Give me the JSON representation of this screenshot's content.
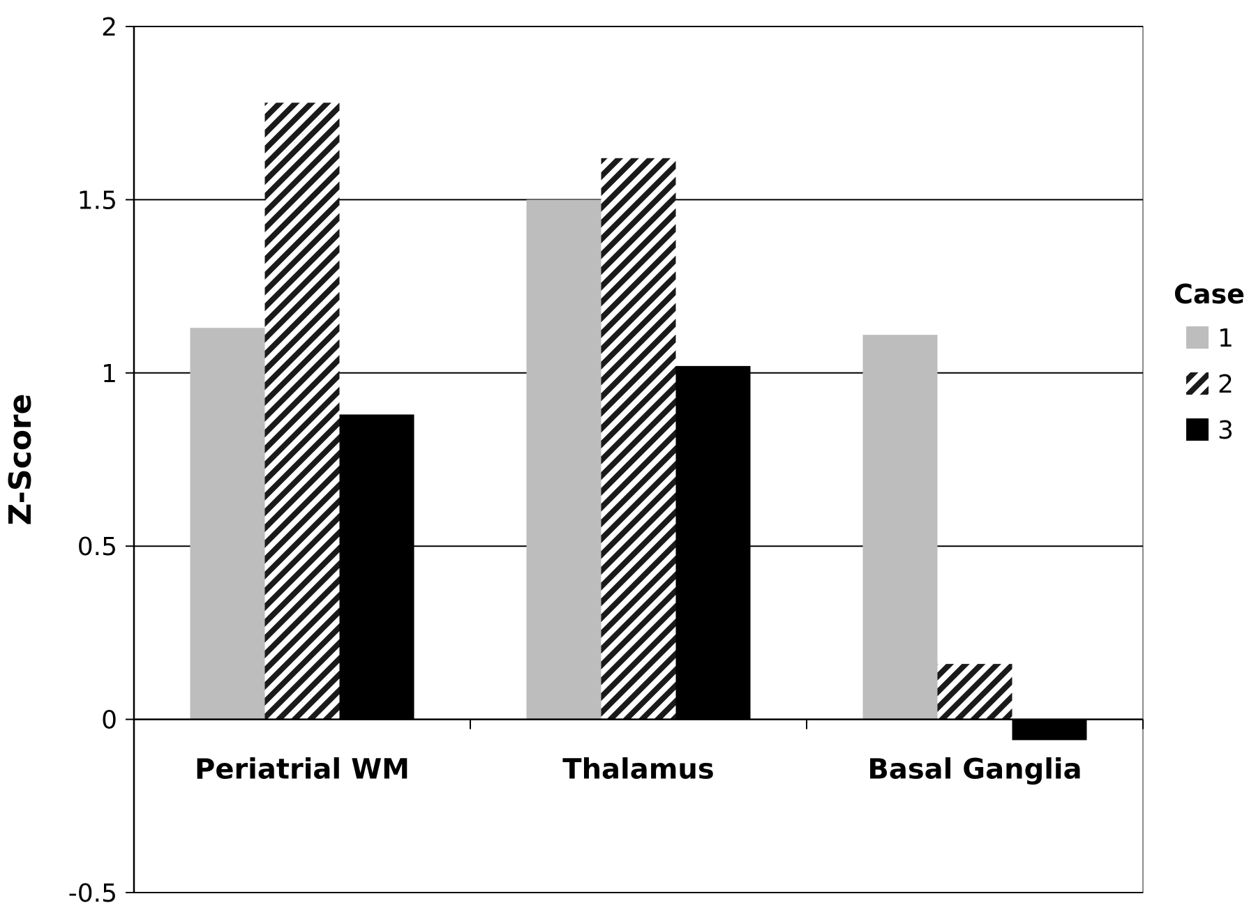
{
  "chart_data": {
    "type": "bar",
    "title": "",
    "xlabel": "",
    "ylabel": "Z-Score",
    "ylim": [
      -0.5,
      2
    ],
    "yticks": [
      "-0.5",
      "0",
      "0.5",
      "1",
      "1.5",
      "2"
    ],
    "grid": true,
    "legend_placement": "right",
    "legend_title": "Case",
    "categories": [
      "Periatrial WM",
      "Thalamus",
      "Basal Ganglia"
    ],
    "series": [
      {
        "name": "1",
        "values": [
          1.13,
          1.5,
          1.11
        ],
        "color": "#bdbdbd",
        "fill": "solid"
      },
      {
        "name": "2",
        "values": [
          1.78,
          1.62,
          0.16
        ],
        "color": "#1a1a1a",
        "fill": "hatched"
      },
      {
        "name": "3",
        "values": [
          0.88,
          1.02,
          -0.06
        ],
        "color": "#000000",
        "fill": "solid"
      }
    ]
  }
}
